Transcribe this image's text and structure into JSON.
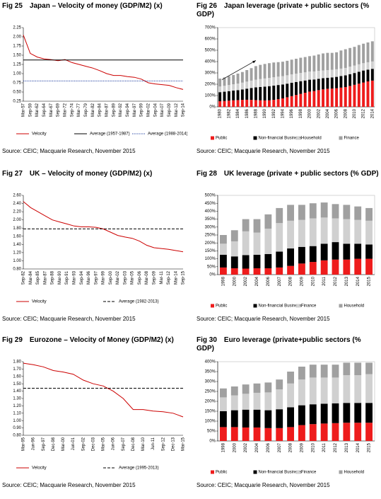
{
  "chart_data": [
    {
      "type": "line",
      "fig": "Fig 25",
      "title": "Japan – Velocity of money (GDP/M2) (x)",
      "categories": [
        "Mar-57",
        "Sep-59",
        "Mar-62",
        "Sep-64",
        "Mar-67",
        "Sep-69",
        "Mar-72",
        "Sep-74",
        "Mar-77",
        "Sep-79",
        "Mar-82",
        "Sep-84",
        "Mar-87",
        "Sep-89",
        "Mar-92",
        "Sep-94",
        "Mar-97",
        "Sep-99",
        "Mar-02",
        "Sep-04",
        "Mar-07",
        "Sep-09",
        "Mar-12",
        "Sep-14"
      ],
      "series": [
        {
          "name": "Velocity",
          "color": "#cc0000",
          "values": [
            2.05,
            1.55,
            1.45,
            1.4,
            1.38,
            1.35,
            1.38,
            1.3,
            1.25,
            1.2,
            1.15,
            1.08,
            1.0,
            0.95,
            0.95,
            0.92,
            0.9,
            0.85,
            0.75,
            0.72,
            0.7,
            0.68,
            0.62,
            0.57
          ]
        },
        {
          "name": "Average (1957-1987)",
          "color": "#000000",
          "value": 1.37,
          "style": "solid"
        },
        {
          "name": "Average (1988-2014)",
          "color": "#1f3fa0",
          "value": 0.8,
          "style": "dotted"
        }
      ],
      "ylim": [
        0.25,
        2.25
      ],
      "yticks": [
        0.25,
        {
          "value": 0.5,
          "label": "0.50"
        },
        0.75,
        {
          "value": 1,
          "label": "1.00"
        },
        1.25,
        {
          "value": 1.5,
          "label": "1.50"
        },
        1.75,
        {
          "value": 2,
          "label": "2.00"
        },
        2.25
      ],
      "source": "Source: CEIC; Macquarie Research, November 2015"
    },
    {
      "type": "bar",
      "fig": "Fig 26",
      "title": "Japan leverage (private + public sectors (% GDP)",
      "categories": [
        "1980",
        null,
        "1982",
        null,
        "1984",
        null,
        "1986",
        null,
        "1988",
        null,
        "1990",
        null,
        "1992",
        null,
        "1994",
        null,
        "1996",
        null,
        "1998",
        null,
        "2000",
        null,
        "2002",
        null,
        "2004",
        null,
        "2006",
        null,
        "2008",
        null,
        "2010",
        null,
        "2012",
        null,
        "2014"
      ],
      "series": [
        {
          "name": "Public",
          "color": "#ee1c1c",
          "values": [
            50,
            52,
            55,
            58,
            60,
            62,
            63,
            62,
            60,
            58,
            57,
            58,
            62,
            68,
            75,
            85,
            95,
            105,
            115,
            125,
            135,
            140,
            148,
            155,
            160,
            162,
            165,
            170,
            175,
            185,
            195,
            205,
            215,
            225,
            232
          ]
        },
        {
          "name": "Non-financial Business",
          "color": "#000000",
          "values": [
            80,
            82,
            84,
            86,
            88,
            92,
            98,
            105,
            112,
            118,
            122,
            125,
            126,
            125,
            123,
            120,
            118,
            115,
            112,
            108,
            105,
            102,
            100,
            98,
            97,
            98,
            100,
            102,
            103,
            104,
            104,
            105,
            106,
            104,
            104
          ]
        },
        {
          "name": "Household",
          "color": "#d0d0d0",
          "values": [
            50,
            52,
            54,
            56,
            58,
            60,
            62,
            65,
            68,
            70,
            72,
            73,
            74,
            74,
            74,
            74,
            74,
            73,
            73,
            72,
            72,
            71,
            70,
            69,
            68,
            67,
            67,
            66,
            66,
            66,
            66,
            66,
            65,
            65,
            65
          ]
        },
        {
          "name": "Finance",
          "color": "#a0a0a0",
          "values": [
            70,
            74,
            78,
            82,
            88,
            94,
            102,
            110,
            120,
            125,
            128,
            130,
            130,
            128,
            127,
            128,
            130,
            132,
            134,
            135,
            136,
            140,
            145,
            150,
            152,
            150,
            150,
            160,
            165,
            165,
            165,
            170,
            172,
            175,
            178
          ]
        }
      ],
      "ylim": [
        0,
        700
      ],
      "yticks": [
        {
          "value": 0,
          "label": "0%"
        },
        {
          "value": 100,
          "label": "100%"
        },
        {
          "value": 200,
          "label": "200%"
        },
        {
          "value": 300,
          "label": "300%"
        },
        {
          "value": 400,
          "label": "400%"
        },
        {
          "value": 500,
          "label": "500%"
        },
        {
          "value": 600,
          "label": "600%"
        },
        {
          "value": 700,
          "label": "700%"
        }
      ],
      "arrow": true,
      "source": "Source: CEIC; Macquarie Research, November 2015"
    },
    {
      "type": "line",
      "fig": "Fig 27",
      "title": "UK – Velocity of money (GDP/M2) (x)",
      "categories": [
        "Sep-82",
        "Mar-84",
        "Sep-85",
        "Mar-87",
        "Sep-88",
        "Mar-90",
        "Sep-91",
        "Mar-93",
        "Sep-94",
        "Mar-96",
        "Sep-97",
        "Mar-99",
        "Sep-00",
        "Mar-02",
        "Sep-03",
        "Mar-05",
        "Sep-06",
        "Mar-08",
        "Sep-09",
        "Mar-11",
        "Sep-12",
        "Mar-14",
        "Sep-15"
      ],
      "series": [
        {
          "name": "Velocity",
          "color": "#cc0000",
          "values": [
            2.45,
            2.3,
            2.2,
            2.1,
            2.0,
            1.95,
            1.9,
            1.85,
            1.83,
            1.83,
            1.82,
            1.78,
            1.7,
            1.62,
            1.58,
            1.55,
            1.48,
            1.38,
            1.32,
            1.3,
            1.28,
            1.25,
            1.22
          ]
        },
        {
          "name": "Average (1982-2013)",
          "color": "#000000",
          "value": 1.78,
          "style": "dashed"
        }
      ],
      "ylim": [
        0.8,
        2.6
      ],
      "yticks": [
        {
          "value": 0.8,
          "label": "0.80"
        },
        {
          "value": 1,
          "label": "1.00"
        },
        {
          "value": 1.2,
          "label": "1.20"
        },
        {
          "value": 1.4,
          "label": "1.40"
        },
        {
          "value": 1.6,
          "label": "1.60"
        },
        {
          "value": 1.8,
          "label": "1.80"
        },
        {
          "value": 2,
          "label": "2.00"
        },
        {
          "value": 2.2,
          "label": "2.20"
        },
        {
          "value": 2.4,
          "label": "2.40"
        },
        {
          "value": 2.6,
          "label": "2.60"
        }
      ],
      "source": "Source: CEIC; Macquarie Research, November 2015"
    },
    {
      "type": "bar",
      "fig": "Fig 28",
      "title": "UK leverage (private + public sectors (% GDP)",
      "categories": [
        "1998",
        "2000",
        "2002",
        "2004",
        "2006",
        "2007",
        "2008",
        "2009",
        "2010",
        "2011",
        "2012",
        "2013",
        "2014",
        "2015"
      ],
      "series": [
        {
          "name": "Public",
          "color": "#ee1c1c",
          "values": [
            45,
            40,
            38,
            40,
            40,
            45,
            55,
            70,
            80,
            90,
            95,
            95,
            100,
            100
          ]
        },
        {
          "name": "Non-financial Business",
          "color": "#000000",
          "values": [
            80,
            75,
            85,
            85,
            90,
            100,
            110,
            105,
            100,
            105,
            110,
            100,
            95,
            90
          ]
        },
        {
          "name": "Finance",
          "color": "#d0d0d0",
          "values": [
            70,
            95,
            150,
            140,
            160,
            180,
            175,
            170,
            175,
            165,
            150,
            155,
            150,
            150
          ]
        },
        {
          "name": "Household",
          "color": "#a0a0a0",
          "values": [
            55,
            70,
            77,
            85,
            90,
            95,
            100,
            95,
            95,
            95,
            90,
            90,
            85,
            80
          ]
        }
      ],
      "ylim": [
        0,
        500
      ],
      "yticks": [
        {
          "value": 0,
          "label": "0%"
        },
        {
          "value": 50,
          "label": "50%"
        },
        {
          "value": 100,
          "label": "100%"
        },
        {
          "value": 150,
          "label": "150%"
        },
        {
          "value": 200,
          "label": "200%"
        },
        {
          "value": 250,
          "label": "250%"
        },
        {
          "value": 300,
          "label": "300%"
        },
        {
          "value": 350,
          "label": "350%"
        },
        {
          "value": 400,
          "label": "400%"
        },
        {
          "value": 450,
          "label": "450%"
        },
        {
          "value": 500,
          "label": "500%"
        }
      ],
      "source": "Source: CEIC; Macquarie Research, November 2015"
    },
    {
      "type": "line",
      "fig": "Fig 29",
      "title": "Eurozone – Velocity of Money (GDP/M2) (x)",
      "categories": [
        "Mar-95",
        "Jun-96",
        "Sep-97",
        "Dec-98",
        "Mar-00",
        "Jun-01",
        "Sep-02",
        "Dec-03",
        "Mar-05",
        "Jun-06",
        "Sep-07",
        "Dec-08",
        "Mar-10",
        "Jun-11",
        "Sep-12",
        "Dec-13",
        "Mar-15"
      ],
      "series": [
        {
          "name": "Velocity",
          "color": "#cc0000",
          "values": [
            1.78,
            1.76,
            1.73,
            1.68,
            1.66,
            1.63,
            1.55,
            1.5,
            1.47,
            1.4,
            1.3,
            1.15,
            1.15,
            1.13,
            1.12,
            1.1,
            1.05
          ]
        },
        {
          "name": "Average (1995-2013)",
          "color": "#000000",
          "value": 1.44,
          "style": "dashed"
        }
      ],
      "ylim": [
        0.8,
        1.8
      ],
      "yticks": [
        {
          "value": 0.8,
          "label": "0.80"
        },
        {
          "value": 0.9,
          "label": "0.90"
        },
        {
          "value": 1,
          "label": "1.00"
        },
        {
          "value": 1.1,
          "label": "1.10"
        },
        {
          "value": 1.2,
          "label": "1.20"
        },
        {
          "value": 1.3,
          "label": "1.30"
        },
        {
          "value": 1.4,
          "label": "1.40"
        },
        {
          "value": 1.5,
          "label": "1.50"
        },
        {
          "value": 1.6,
          "label": "1.60"
        },
        {
          "value": 1.7,
          "label": "1.70"
        },
        {
          "value": 1.8,
          "label": "1.80"
        }
      ],
      "source": "Source: CEIC; Macquarie Research, November 2015"
    },
    {
      "type": "bar",
      "fig": "Fig 30",
      "title": "Euro leverage (private+public sectors (% GDP)",
      "categories": [
        "1998",
        "2000",
        "2002",
        "2004",
        "2006",
        "2007",
        "2008",
        "2009",
        "2010",
        "2011",
        "2012",
        "2013",
        "2014",
        "2015"
      ],
      "series": [
        {
          "name": "Public",
          "color": "#ee1c1c",
          "values": [
            70,
            70,
            68,
            68,
            65,
            65,
            70,
            80,
            85,
            88,
            90,
            92,
            92,
            92
          ]
        },
        {
          "name": "Non-financial Business",
          "color": "#000000",
          "values": [
            80,
            85,
            90,
            90,
            90,
            95,
            100,
            100,
            100,
            100,
            100,
            100,
            100,
            100
          ]
        },
        {
          "name": "Finance",
          "color": "#d0d0d0",
          "values": [
            70,
            75,
            80,
            85,
            90,
            100,
            120,
            130,
            135,
            132,
            130,
            140,
            140,
            145
          ]
        },
        {
          "name": "Household",
          "color": "#a0a0a0",
          "values": [
            45,
            45,
            47,
            47,
            50,
            50,
            60,
            65,
            65,
            65,
            65,
            63,
            63,
            58
          ]
        }
      ],
      "ylim": [
        0,
        400
      ],
      "yticks": [
        {
          "value": 0,
          "label": "0%"
        },
        {
          "value": 50,
          "label": "50%"
        },
        {
          "value": 100,
          "label": "100%"
        },
        {
          "value": 150,
          "label": "150%"
        },
        {
          "value": 200,
          "label": "200%"
        },
        {
          "value": 250,
          "label": "250%"
        },
        {
          "value": 300,
          "label": "300%"
        },
        {
          "value": 350,
          "label": "350%"
        },
        {
          "value": 400,
          "label": "400%"
        }
      ],
      "source": "Source: CEIC; Macquarie Research, November 2015"
    }
  ]
}
